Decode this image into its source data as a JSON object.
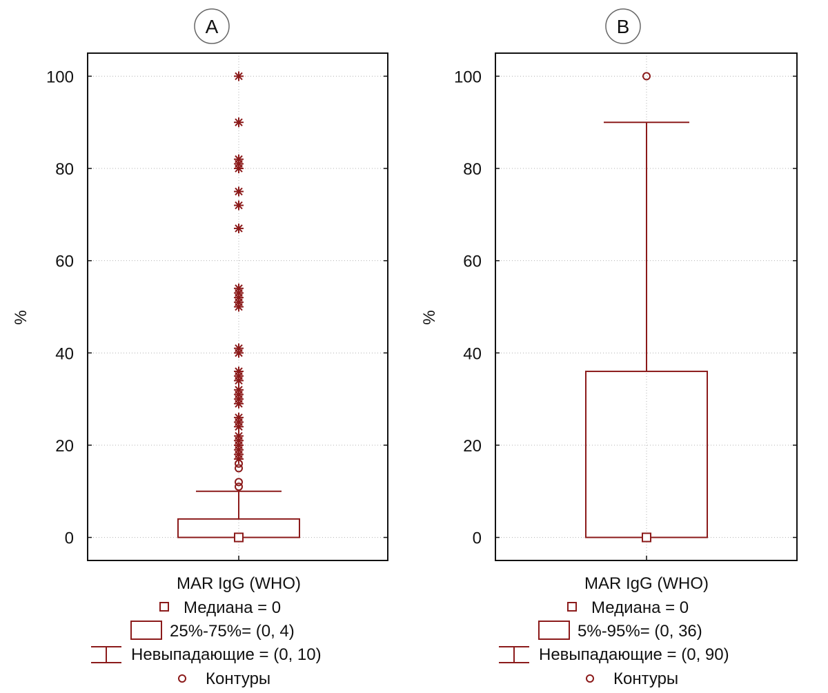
{
  "colors": {
    "mark": "#8b1a1a",
    "frame": "#111111",
    "grid": "#b0b0b0"
  },
  "chart_data": [
    {
      "type": "box",
      "panel_label": "A",
      "ylabel": "%",
      "xlabel": "MAR IgG (WHO)",
      "ylim": [
        -5,
        105
      ],
      "yticks": [
        0,
        20,
        40,
        60,
        80,
        100
      ],
      "grid": true,
      "median": 0,
      "box": [
        0,
        4
      ],
      "whisker": [
        0,
        10
      ],
      "outliers": [
        11,
        12,
        15,
        16
      ],
      "extremes": [
        17,
        18,
        19,
        20,
        21,
        22,
        24,
        25,
        26,
        29,
        30,
        31,
        32,
        34,
        35,
        36,
        40,
        41,
        50,
        51,
        52,
        53,
        54,
        67,
        72,
        75,
        80,
        81,
        82,
        90,
        100
      ],
      "legend": {
        "median": "Медиана = 0",
        "box": "25%-75%= (0, 4)",
        "whisker": "Невыпадающие = (0, 10)",
        "outlier": "Контуры"
      }
    },
    {
      "type": "box",
      "panel_label": "B",
      "ylabel": "%",
      "xlabel": "MAR IgG (WHO)",
      "ylim": [
        -5,
        105
      ],
      "yticks": [
        0,
        20,
        40,
        60,
        80,
        100
      ],
      "grid": true,
      "median": 0,
      "box": [
        0,
        36
      ],
      "whisker": [
        0,
        90
      ],
      "outliers": [
        100
      ],
      "extremes": [],
      "legend": {
        "median": "Медиана = 0",
        "box": "5%-95%= (0, 36)",
        "whisker": "Невыпадающие = (0, 90)",
        "outlier": "Контуры"
      }
    }
  ]
}
